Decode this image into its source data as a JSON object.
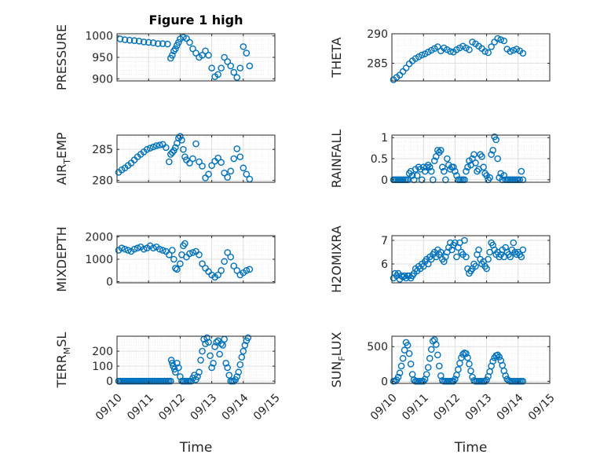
{
  "figure": {
    "title": "Figure 1 high",
    "xlabel": "Time"
  },
  "colors": {
    "marker": "#0072BD",
    "axis": "#262626",
    "grid": "#DFDFDF",
    "minor_grid": "#E6E6E6"
  },
  "chart_data": [
    {
      "id": "pressure",
      "type": "scatter",
      "title": "Figure 1 high",
      "ylabel_main": "PRESSURE",
      "ylabel_sub": "",
      "ylabel_tail": "",
      "ylim": [
        895,
        1005
      ],
      "yticks": [
        900,
        950,
        1000
      ],
      "ytick_labels": [
        "900",
        "950",
        "1000"
      ],
      "xlim": [
        0,
        5
      ],
      "xticks": [
        0,
        1,
        2,
        3,
        4,
        5
      ],
      "xtick_labels": [
        "09/10",
        "09/11",
        "09/12",
        "09/13",
        "09/14",
        "09/15"
      ],
      "show_xticklabels": false,
      "xlabel": "",
      "x": [
        0.1,
        0.25,
        0.4,
        0.55,
        0.7,
        0.85,
        1,
        1.15,
        1.3,
        1.45,
        1.6,
        1.7,
        1.75,
        1.8,
        1.85,
        1.9,
        1.95,
        2,
        2.1,
        2.2,
        2.3,
        2.4,
        2.5,
        2.6,
        2.7,
        2.8,
        2.9,
        3,
        3.1,
        3.2,
        3.3,
        3.4,
        3.5,
        3.6,
        3.7,
        3.8,
        3.9,
        4,
        4.1,
        4.2
      ],
      "y": [
        993,
        991,
        990,
        989,
        988,
        986,
        985,
        984,
        982,
        982,
        981,
        948,
        955,
        965,
        970,
        978,
        985,
        993,
        997,
        994,
        985,
        970,
        960,
        950,
        955,
        965,
        955,
        925,
        905,
        910,
        925,
        950,
        940,
        930,
        915,
        903,
        925,
        975,
        960,
        930
      ]
    },
    {
      "id": "theta",
      "type": "scatter",
      "ylabel_main": "THETA",
      "ylabel_sub": "",
      "ylabel_tail": "",
      "ylim": [
        282,
        290
      ],
      "yticks": [
        285,
        290
      ],
      "ytick_labels": [
        "285",
        "290"
      ],
      "xlim": [
        0,
        5
      ],
      "xticks": [
        0,
        1,
        2,
        3,
        4,
        5
      ],
      "xtick_labels": [
        "09/10",
        "09/11",
        "09/12",
        "09/13",
        "09/14",
        "09/15"
      ],
      "show_xticklabels": false,
      "xlabel": "",
      "x": [
        0.05,
        0.15,
        0.25,
        0.35,
        0.45,
        0.55,
        0.65,
        0.75,
        0.85,
        0.95,
        1.05,
        1.15,
        1.25,
        1.35,
        1.45,
        1.55,
        1.65,
        1.75,
        1.85,
        1.95,
        2.05,
        2.15,
        2.25,
        2.35,
        2.45,
        2.55,
        2.65,
        2.75,
        2.85,
        2.95,
        3.05,
        3.15,
        3.25,
        3.35,
        3.45,
        3.55,
        3.65,
        3.75,
        3.85,
        3.95,
        4.05,
        4.15
      ],
      "y": [
        282.2,
        282.6,
        283.0,
        283.6,
        284.2,
        284.9,
        285.4,
        285.8,
        286.1,
        286.4,
        286.6,
        286.9,
        287.2,
        287.5,
        287.8,
        287.1,
        287.6,
        287.3,
        287.0,
        286.9,
        287.3,
        287.6,
        287.9,
        287.6,
        287.3,
        288.6,
        288.3,
        287.9,
        287.5,
        287.0,
        286.8,
        287.8,
        288.6,
        289.2,
        289.0,
        288.8,
        287.4,
        287.0,
        287.2,
        287.4,
        287.1,
        286.7
      ]
    },
    {
      "id": "air_temp",
      "type": "scatter",
      "ylabel_main": "AIR",
      "ylabel_sub": "T",
      "ylabel_tail": "EMP",
      "ylim": [
        279.7,
        287.3
      ],
      "yticks": [
        280,
        285
      ],
      "ytick_labels": [
        "280",
        "285"
      ],
      "xlim": [
        0,
        5
      ],
      "xticks": [
        0,
        1,
        2,
        3,
        4,
        5
      ],
      "xtick_labels": [
        "09/10",
        "09/11",
        "09/12",
        "09/13",
        "09/14",
        "09/15"
      ],
      "show_xticklabels": false,
      "xlabel": "",
      "x": [
        0.05,
        0.15,
        0.25,
        0.35,
        0.45,
        0.55,
        0.65,
        0.75,
        0.85,
        0.95,
        1.05,
        1.15,
        1.25,
        1.35,
        1.45,
        1.55,
        1.65,
        1.7,
        1.75,
        1.8,
        1.85,
        1.9,
        1.95,
        2.0,
        2.05,
        2.1,
        2.15,
        2.2,
        2.3,
        2.4,
        2.5,
        2.6,
        2.7,
        2.8,
        2.9,
        3.0,
        3.1,
        3.2,
        3.3,
        3.4,
        3.5,
        3.6,
        3.7,
        3.8,
        3.9,
        4.0,
        4.1,
        4.2
      ],
      "y": [
        281.3,
        281.7,
        282.0,
        282.4,
        282.8,
        283.3,
        283.8,
        284.2,
        284.6,
        285.0,
        285.2,
        285.4,
        285.6,
        285.7,
        285.8,
        285.3,
        283.0,
        284.2,
        284.5,
        284.8,
        285.3,
        286.0,
        286.8,
        287.1,
        286.5,
        285.0,
        283.8,
        283.3,
        282.8,
        283.5,
        285.9,
        283.0,
        282.3,
        280.4,
        281.0,
        282.4,
        283.1,
        283.6,
        282.9,
        281.2,
        280.5,
        281.5,
        283.5,
        285.1,
        283.8,
        282.0,
        281.0,
        280.2
      ]
    },
    {
      "id": "rainfall",
      "type": "scatter",
      "ylabel_main": "RAINFALL",
      "ylabel_sub": "",
      "ylabel_tail": "",
      "ylim": [
        -0.06,
        1.06
      ],
      "yticks": [
        0,
        0.5,
        1
      ],
      "ytick_labels": [
        "0",
        "0.5",
        "1"
      ],
      "xlim": [
        0,
        5
      ],
      "xticks": [
        0,
        1,
        2,
        3,
        4,
        5
      ],
      "xtick_labels": [
        "09/10",
        "09/11",
        "09/12",
        "09/13",
        "09/14",
        "09/15"
      ],
      "show_xticklabels": false,
      "xlabel": "",
      "x": [
        0.05,
        0.1,
        0.15,
        0.2,
        0.25,
        0.3,
        0.35,
        0.4,
        0.45,
        0.5,
        0.55,
        0.6,
        0.65,
        0.7,
        0.75,
        0.8,
        0.85,
        0.9,
        0.95,
        1.0,
        1.05,
        1.1,
        1.15,
        1.2,
        1.25,
        1.3,
        1.35,
        1.4,
        1.45,
        1.5,
        1.55,
        1.6,
        1.65,
        1.7,
        1.75,
        1.8,
        1.85,
        1.9,
        1.95,
        2.0,
        2.05,
        2.1,
        2.15,
        2.2,
        2.25,
        2.3,
        2.35,
        2.4,
        2.45,
        2.5,
        2.55,
        2.6,
        2.65,
        2.7,
        2.75,
        2.8,
        2.85,
        2.9,
        2.95,
        3.0,
        3.05,
        3.1,
        3.15,
        3.2,
        3.25,
        3.3,
        3.35,
        3.4,
        3.45,
        3.5,
        3.55,
        3.6,
        3.65,
        3.7,
        3.75,
        3.8,
        3.85,
        3.9,
        3.95,
        4.0,
        4.05,
        4.1,
        4.15
      ],
      "y": [
        0,
        0,
        0,
        0,
        0,
        0,
        0,
        0,
        0,
        0,
        0.15,
        0.2,
        0.1,
        0,
        0.25,
        0.1,
        0.3,
        0.25,
        0,
        0.3,
        0.2,
        0.3,
        0.35,
        0.3,
        0.2,
        0,
        0.45,
        0.55,
        0.7,
        0.65,
        0.7,
        0.3,
        0.2,
        0,
        0.5,
        0.35,
        0.25,
        0.3,
        0.3,
        0.2,
        0.1,
        0,
        0,
        0,
        0,
        0,
        0.2,
        0.3,
        0.45,
        0.35,
        0.5,
        0.6,
        0.4,
        0.2,
        0.25,
        0.6,
        0.55,
        0.3,
        0.15,
        0.1,
        0,
        0.05,
        0.6,
        0.7,
        1.02,
        0.95,
        0.5,
        0.05,
        0.15,
        0,
        0.1,
        0,
        0,
        0,
        0,
        0,
        0,
        0,
        0,
        0,
        0,
        0.2,
        0
      ]
    },
    {
      "id": "mixdepth",
      "type": "scatter",
      "ylabel_main": "MIXDEPTH",
      "ylabel_sub": "",
      "ylabel_tail": "",
      "ylim": [
        -50,
        2050
      ],
      "yticks": [
        0,
        1000,
        2000
      ],
      "ytick_labels": [
        "0",
        "1000",
        "2000"
      ],
      "xlim": [
        0,
        5
      ],
      "xticks": [
        0,
        1,
        2,
        3,
        4,
        5
      ],
      "xtick_labels": [
        "09/10",
        "09/11",
        "09/12",
        "09/13",
        "09/14",
        "09/15"
      ],
      "show_xticklabels": false,
      "xlabel": "",
      "x": [
        0.05,
        0.15,
        0.25,
        0.35,
        0.45,
        0.55,
        0.65,
        0.75,
        0.85,
        0.95,
        1.05,
        1.15,
        1.25,
        1.35,
        1.45,
        1.55,
        1.65,
        1.75,
        1.8,
        1.85,
        1.9,
        2.0,
        2.05,
        2.1,
        2.15,
        2.2,
        2.3,
        2.4,
        2.5,
        2.6,
        2.7,
        2.8,
        2.9,
        3.0,
        3.1,
        3.2,
        3.3,
        3.4,
        3.5,
        3.6,
        3.7,
        3.8,
        3.9,
        4.0,
        4.1,
        4.2
      ],
      "y": [
        1400,
        1500,
        1450,
        1400,
        1350,
        1450,
        1500,
        1550,
        1450,
        1500,
        1600,
        1500,
        1550,
        1450,
        1400,
        1350,
        1200,
        1400,
        1000,
        600,
        550,
        800,
        1200,
        1600,
        1700,
        1100,
        1250,
        1300,
        1350,
        1200,
        800,
        600,
        450,
        300,
        200,
        300,
        500,
        900,
        1300,
        1100,
        700,
        500,
        300,
        400,
        500,
        550
      ]
    },
    {
      "id": "h2omixra",
      "type": "scatter",
      "ylabel_main": "H2OMIXRA",
      "ylabel_sub": "",
      "ylabel_tail": "",
      "ylim": [
        5.2,
        7.2
      ],
      "yticks": [
        6,
        7
      ],
      "ytick_labels": [
        "6",
        "7"
      ],
      "xlim": [
        0,
        5
      ],
      "xticks": [
        0,
        1,
        2,
        3,
        4,
        5
      ],
      "xtick_labels": [
        "09/10",
        "09/11",
        "09/12",
        "09/13",
        "09/14",
        "09/15"
      ],
      "show_xticklabels": false,
      "xlabel": "",
      "x": [
        0.05,
        0.1,
        0.15,
        0.2,
        0.25,
        0.3,
        0.35,
        0.4,
        0.45,
        0.5,
        0.55,
        0.6,
        0.65,
        0.7,
        0.75,
        0.8,
        0.85,
        0.9,
        0.95,
        1.0,
        1.05,
        1.1,
        1.15,
        1.2,
        1.25,
        1.3,
        1.35,
        1.4,
        1.45,
        1.5,
        1.55,
        1.6,
        1.65,
        1.7,
        1.75,
        1.8,
        1.85,
        1.9,
        1.95,
        2.0,
        2.05,
        2.1,
        2.15,
        2.2,
        2.25,
        2.3,
        2.35,
        2.4,
        2.45,
        2.5,
        2.55,
        2.6,
        2.65,
        2.7,
        2.75,
        2.8,
        2.85,
        2.9,
        2.95,
        3.0,
        3.05,
        3.1,
        3.15,
        3.2,
        3.25,
        3.3,
        3.35,
        3.4,
        3.45,
        3.5,
        3.55,
        3.6,
        3.65,
        3.7,
        3.75,
        3.8,
        3.85,
        3.9,
        3.95,
        4.0,
        4.05,
        4.1,
        4.15
      ],
      "y": [
        5.4,
        5.6,
        5.5,
        5.6,
        5.35,
        5.5,
        5.45,
        5.5,
        5.4,
        5.5,
        5.5,
        5.4,
        5.5,
        5.6,
        5.8,
        5.7,
        5.9,
        5.8,
        6.0,
        5.9,
        6.1,
        6.2,
        6.0,
        6.3,
        6.2,
        6.4,
        6.5,
        6.3,
        6.6,
        6.4,
        6.5,
        6.2,
        6.1,
        6.3,
        6.5,
        6.7,
        6.9,
        6.6,
        6.8,
        6.9,
        6.3,
        6.7,
        6.9,
        6.5,
        6.4,
        7.0,
        6.3,
        5.8,
        5.6,
        5.7,
        5.8,
        6.0,
        5.9,
        6.4,
        6.6,
        6.2,
        6.0,
        6.1,
        5.9,
        5.8,
        6.2,
        6.5,
        6.9,
        6.8,
        6.6,
        6.4,
        6.5,
        6.3,
        6.4,
        6.6,
        6.3,
        6.7,
        6.5,
        6.4,
        6.3,
        6.6,
        6.9,
        6.5,
        6.4,
        6.5,
        6.4,
        6.3,
        6.6
      ]
    },
    {
      "id": "terr_msl",
      "type": "scatter",
      "ylabel_main": "TERR",
      "ylabel_sub": "M",
      "ylabel_tail": "SL",
      "ylim": [
        -15,
        300
      ],
      "yticks": [
        0,
        100,
        200
      ],
      "ytick_labels": [
        "0",
        "100",
        "200"
      ],
      "xlim": [
        0,
        5
      ],
      "xticks": [
        0,
        1,
        2,
        3,
        4,
        5
      ],
      "xtick_labels": [
        "09/10",
        "09/11",
        "09/12",
        "09/13",
        "09/14",
        "09/15"
      ],
      "show_xticklabels": true,
      "xlabel": "Time",
      "x": [
        0.05,
        0.1,
        0.15,
        0.2,
        0.25,
        0.3,
        0.35,
        0.4,
        0.45,
        0.5,
        0.55,
        0.6,
        0.65,
        0.7,
        0.75,
        0.8,
        0.85,
        0.9,
        0.95,
        1.0,
        1.05,
        1.1,
        1.15,
        1.2,
        1.25,
        1.3,
        1.35,
        1.4,
        1.45,
        1.5,
        1.55,
        1.6,
        1.65,
        1.7,
        1.72,
        1.75,
        1.78,
        1.82,
        1.85,
        1.9,
        1.95,
        2.0,
        2.05,
        2.1,
        2.15,
        2.2,
        2.25,
        2.3,
        2.35,
        2.4,
        2.45,
        2.5,
        2.55,
        2.6,
        2.65,
        2.7,
        2.75,
        2.8,
        2.85,
        2.9,
        2.95,
        3.0,
        3.05,
        3.1,
        3.15,
        3.2,
        3.25,
        3.3,
        3.35,
        3.4,
        3.45,
        3.5,
        3.55,
        3.6,
        3.65,
        3.7,
        3.75,
        3.8,
        3.85,
        3.9,
        3.95,
        4.0,
        4.05,
        4.1,
        4.15
      ],
      "y": [
        0,
        0,
        0,
        0,
        0,
        0,
        0,
        0,
        0,
        0,
        0,
        0,
        0,
        0,
        0,
        0,
        0,
        0,
        0,
        0,
        0,
        0,
        0,
        0,
        0,
        0,
        0,
        0,
        0,
        0,
        0,
        0,
        0,
        0,
        140,
        120,
        100,
        80,
        60,
        120,
        90,
        30,
        0,
        0,
        0,
        0,
        0,
        0,
        0,
        20,
        40,
        10,
        30,
        60,
        140,
        200,
        280,
        250,
        290,
        260,
        170,
        90,
        120,
        230,
        260,
        270,
        180,
        250,
        240,
        280,
        120,
        90,
        40,
        0,
        0,
        0,
        10,
        30,
        60,
        110,
        160,
        200,
        240,
        270,
        290
      ]
    },
    {
      "id": "sun_flux",
      "type": "scatter",
      "ylabel_main": "SUN",
      "ylabel_sub": "F",
      "ylabel_tail": "LUX",
      "ylim": [
        -30,
        650
      ],
      "yticks": [
        0,
        500
      ],
      "ytick_labels": [
        "0",
        "500"
      ],
      "xlim": [
        0,
        5
      ],
      "xticks": [
        0,
        1,
        2,
        3,
        4,
        5
      ],
      "xtick_labels": [
        "09/10",
        "09/11",
        "09/12",
        "09/13",
        "09/14",
        "09/15"
      ],
      "show_xticklabels": true,
      "xlabel": "Time",
      "x": [
        0.05,
        0.1,
        0.15,
        0.2,
        0.25,
        0.3,
        0.35,
        0.4,
        0.45,
        0.5,
        0.55,
        0.6,
        0.65,
        0.7,
        0.75,
        0.8,
        0.85,
        0.9,
        0.95,
        1.0,
        1.05,
        1.1,
        1.15,
        1.2,
        1.25,
        1.3,
        1.35,
        1.4,
        1.45,
        1.5,
        1.55,
        1.6,
        1.65,
        1.7,
        1.75,
        1.8,
        1.85,
        1.9,
        1.95,
        2.0,
        2.05,
        2.1,
        2.15,
        2.2,
        2.25,
        2.3,
        2.35,
        2.4,
        2.45,
        2.5,
        2.55,
        2.6,
        2.65,
        2.7,
        2.75,
        2.8,
        2.85,
        2.9,
        2.95,
        3.0,
        3.05,
        3.1,
        3.15,
        3.2,
        3.25,
        3.3,
        3.35,
        3.4,
        3.45,
        3.5,
        3.55,
        3.6,
        3.65,
        3.7,
        3.75,
        3.8,
        3.85,
        3.9,
        3.95,
        4.0,
        4.05,
        4.1,
        4.15
      ],
      "y": [
        0,
        5,
        20,
        60,
        120,
        220,
        330,
        450,
        560,
        520,
        400,
        250,
        100,
        20,
        0,
        0,
        0,
        0,
        0,
        0,
        30,
        100,
        200,
        330,
        460,
        580,
        600,
        530,
        380,
        220,
        80,
        10,
        0,
        0,
        0,
        0,
        0,
        0,
        0,
        30,
        90,
        170,
        260,
        340,
        390,
        410,
        400,
        340,
        250,
        150,
        60,
        10,
        0,
        0,
        0,
        0,
        0,
        0,
        0,
        20,
        70,
        140,
        220,
        290,
        340,
        370,
        380,
        350,
        300,
        230,
        150,
        80,
        30,
        10,
        0,
        0,
        0,
        0,
        0,
        0,
        0,
        0,
        0
      ]
    }
  ]
}
